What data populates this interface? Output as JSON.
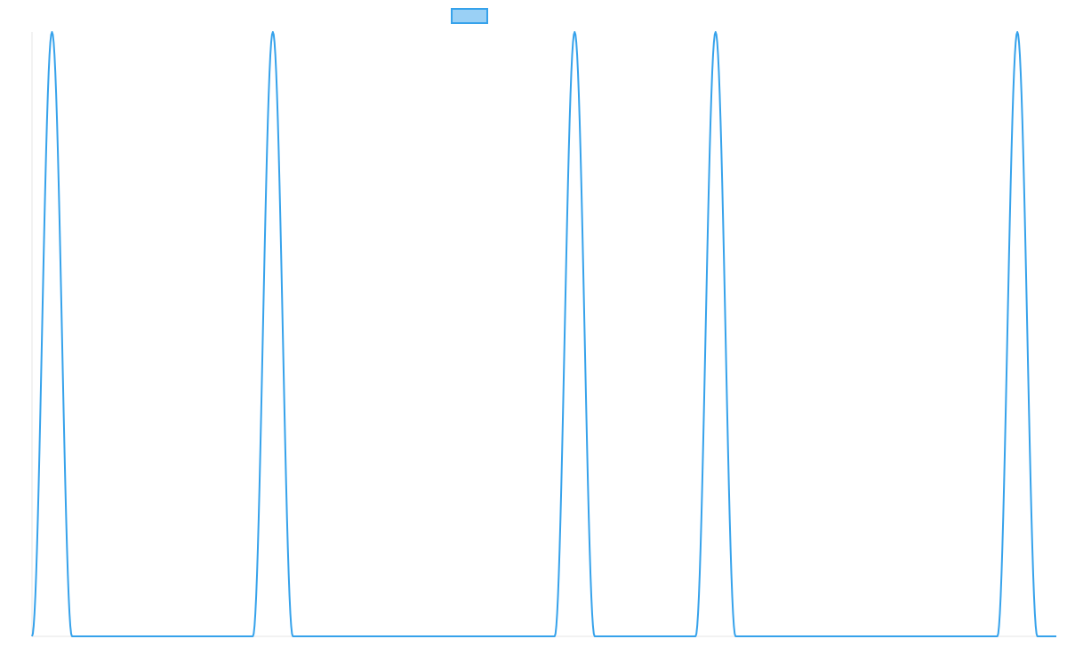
{
  "chart_data": {
    "type": "line",
    "title": "",
    "xlabel": "",
    "ylabel": "",
    "grid": false,
    "legend": {
      "placement": "top-center",
      "entries": [
        {
          "name": "",
          "color": "#36a2eb",
          "fill": "#9ad0f5"
        }
      ]
    },
    "x_domain": [
      0,
      1025
    ],
    "y_domain": [
      0,
      1
    ],
    "series": [
      {
        "name": "",
        "color": "#36a2eb",
        "points": [
          [
            0,
            0
          ],
          [
            20,
            1
          ],
          [
            40,
            0
          ],
          [
            221,
            0
          ],
          [
            241,
            1
          ],
          [
            261,
            0
          ],
          [
            523,
            0
          ],
          [
            543,
            1
          ],
          [
            563,
            0
          ],
          [
            664,
            0
          ],
          [
            684,
            1
          ],
          [
            704,
            0
          ],
          [
            966,
            0
          ],
          [
            986,
            1
          ],
          [
            1006,
            0
          ],
          [
            1025,
            0
          ]
        ]
      }
    ]
  }
}
